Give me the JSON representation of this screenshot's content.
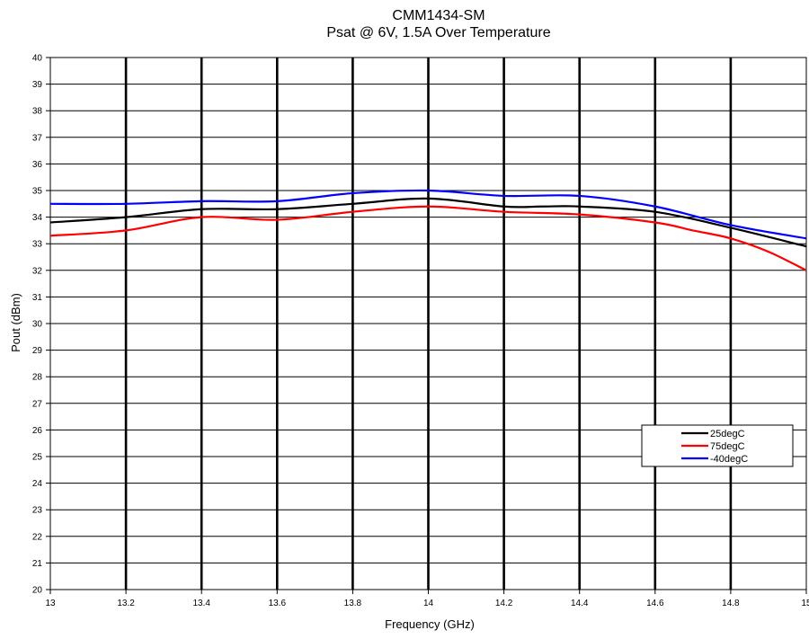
{
  "chart_data": {
    "type": "line",
    "title": "CMM1434-SM",
    "subtitle": "Psat @ 6V, 1.5A Over Temperature",
    "xlabel": "Frequency (GHz)",
    "ylabel": "Pout (dBm)",
    "xlim": [
      13,
      15
    ],
    "ylim": [
      20,
      40
    ],
    "xticks": [
      "13",
      "13.2",
      "13.4",
      "13.6",
      "13.8",
      "14",
      "14.2",
      "14.4",
      "14.6",
      "14.8",
      "15"
    ],
    "yticks": [
      "20",
      "21",
      "22",
      "23",
      "24",
      "25",
      "26",
      "27",
      "28",
      "29",
      "30",
      "31",
      "32",
      "33",
      "34",
      "35",
      "36",
      "37",
      "38",
      "39",
      "40"
    ],
    "grid": true,
    "legend_position": "right",
    "series": [
      {
        "name": "25degC",
        "color": "#000000",
        "x": [
          13.0,
          13.2,
          13.4,
          13.6,
          13.8,
          14.0,
          14.2,
          14.3,
          14.4,
          14.6,
          14.8,
          15.0
        ],
        "y": [
          33.8,
          34.0,
          34.3,
          34.3,
          34.5,
          34.7,
          34.4,
          34.4,
          34.4,
          34.2,
          33.6,
          32.9
        ]
      },
      {
        "name": "75degC",
        "color": "#ff0000",
        "x": [
          13.0,
          13.2,
          13.4,
          13.6,
          13.8,
          14.0,
          14.2,
          14.4,
          14.6,
          14.7,
          14.8,
          14.9,
          15.0
        ],
        "y": [
          33.3,
          33.5,
          34.0,
          33.9,
          34.2,
          34.4,
          34.2,
          34.1,
          33.8,
          33.5,
          33.2,
          32.7,
          32.0
        ]
      },
      {
        "name": "-40degC",
        "color": "#0000ff",
        "x": [
          13.0,
          13.2,
          13.4,
          13.6,
          13.8,
          14.0,
          14.2,
          14.4,
          14.6,
          14.8,
          15.0
        ],
        "y": [
          34.5,
          34.5,
          34.6,
          34.6,
          34.9,
          35.0,
          34.8,
          34.8,
          34.4,
          33.7,
          33.2
        ]
      }
    ]
  }
}
